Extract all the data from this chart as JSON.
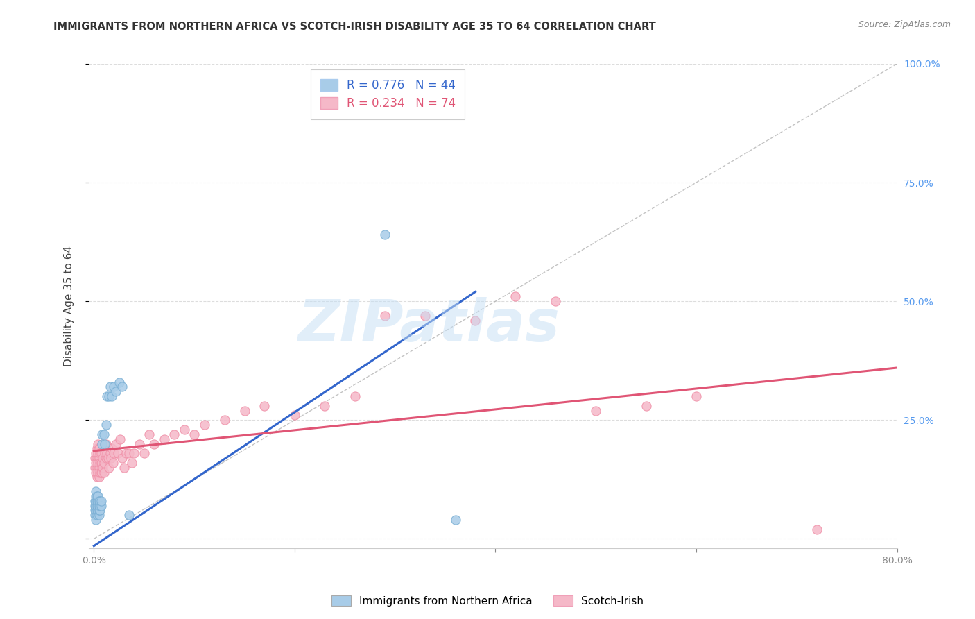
{
  "title": "IMMIGRANTS FROM NORTHERN AFRICA VS SCOTCH-IRISH DISABILITY AGE 35 TO 64 CORRELATION CHART",
  "source": "Source: ZipAtlas.com",
  "ylabel": "Disability Age 35 to 64",
  "xlim": [
    -0.005,
    0.8
  ],
  "ylim": [
    -0.02,
    1.0
  ],
  "xticks": [
    0.0,
    0.2,
    0.4,
    0.6,
    0.8
  ],
  "xticklabels": [
    "0.0%",
    "",
    "",
    "",
    "80.0%"
  ],
  "yticks": [
    0.0,
    0.25,
    0.5,
    0.75,
    1.0
  ],
  "right_yticklabels": [
    "",
    "25.0%",
    "50.0%",
    "75.0%",
    "100.0%"
  ],
  "blue_R": 0.776,
  "blue_N": 44,
  "pink_R": 0.234,
  "pink_N": 74,
  "blue_color": "#a8cce8",
  "pink_color": "#f5b8c8",
  "blue_edge_color": "#7aafd4",
  "pink_edge_color": "#f090a8",
  "blue_line_color": "#3366cc",
  "pink_line_color": "#e05575",
  "ref_line_color": "#aaaaaa",
  "blue_line_x0": 0.0,
  "blue_line_y0": -0.015,
  "blue_line_x1": 0.38,
  "blue_line_y1": 0.52,
  "pink_line_x0": 0.0,
  "pink_line_y0": 0.185,
  "pink_line_x1": 0.8,
  "pink_line_y1": 0.36,
  "ref_line_x0": 0.0,
  "ref_line_y0": 0.0,
  "ref_line_x1": 0.8,
  "ref_line_y1": 1.0,
  "blue_scatter_x": [
    0.001,
    0.001,
    0.001,
    0.001,
    0.002,
    0.002,
    0.002,
    0.002,
    0.002,
    0.002,
    0.003,
    0.003,
    0.003,
    0.003,
    0.003,
    0.004,
    0.004,
    0.004,
    0.004,
    0.005,
    0.005,
    0.005,
    0.005,
    0.006,
    0.006,
    0.006,
    0.007,
    0.007,
    0.008,
    0.008,
    0.01,
    0.011,
    0.012,
    0.013,
    0.015,
    0.016,
    0.018,
    0.02,
    0.022,
    0.025,
    0.028,
    0.035,
    0.29,
    0.36
  ],
  "blue_scatter_y": [
    0.05,
    0.06,
    0.07,
    0.08,
    0.04,
    0.06,
    0.07,
    0.08,
    0.09,
    0.1,
    0.05,
    0.06,
    0.07,
    0.08,
    0.09,
    0.06,
    0.07,
    0.08,
    0.09,
    0.05,
    0.06,
    0.07,
    0.08,
    0.06,
    0.07,
    0.08,
    0.07,
    0.08,
    0.2,
    0.22,
    0.22,
    0.2,
    0.24,
    0.3,
    0.3,
    0.32,
    0.3,
    0.32,
    0.31,
    0.33,
    0.32,
    0.05,
    0.64,
    0.04
  ],
  "pink_scatter_x": [
    0.001,
    0.001,
    0.002,
    0.002,
    0.002,
    0.003,
    0.003,
    0.003,
    0.003,
    0.004,
    0.004,
    0.004,
    0.004,
    0.005,
    0.005,
    0.005,
    0.005,
    0.006,
    0.006,
    0.006,
    0.007,
    0.007,
    0.007,
    0.008,
    0.008,
    0.008,
    0.009,
    0.009,
    0.01,
    0.01,
    0.011,
    0.012,
    0.012,
    0.013,
    0.014,
    0.015,
    0.016,
    0.017,
    0.018,
    0.019,
    0.02,
    0.022,
    0.024,
    0.026,
    0.028,
    0.03,
    0.032,
    0.035,
    0.038,
    0.04,
    0.045,
    0.05,
    0.055,
    0.06,
    0.07,
    0.08,
    0.09,
    0.1,
    0.11,
    0.13,
    0.15,
    0.17,
    0.2,
    0.23,
    0.26,
    0.29,
    0.33,
    0.38,
    0.42,
    0.46,
    0.5,
    0.55,
    0.6,
    0.72
  ],
  "pink_scatter_y": [
    0.15,
    0.17,
    0.14,
    0.16,
    0.18,
    0.13,
    0.15,
    0.17,
    0.19,
    0.14,
    0.16,
    0.18,
    0.2,
    0.13,
    0.15,
    0.17,
    0.19,
    0.14,
    0.16,
    0.18,
    0.14,
    0.16,
    0.18,
    0.14,
    0.16,
    0.2,
    0.15,
    0.17,
    0.14,
    0.16,
    0.18,
    0.17,
    0.2,
    0.18,
    0.17,
    0.15,
    0.18,
    0.17,
    0.19,
    0.16,
    0.18,
    0.2,
    0.18,
    0.21,
    0.17,
    0.15,
    0.18,
    0.18,
    0.16,
    0.18,
    0.2,
    0.18,
    0.22,
    0.2,
    0.21,
    0.22,
    0.23,
    0.22,
    0.24,
    0.25,
    0.27,
    0.28,
    0.26,
    0.28,
    0.3,
    0.47,
    0.47,
    0.46,
    0.51,
    0.5,
    0.27,
    0.28,
    0.3,
    0.02
  ],
  "watermark_text": "ZIPatlas",
  "background_color": "#ffffff",
  "grid_color": "#dddddd",
  "title_color": "#333333",
  "source_color": "#888888",
  "ylabel_color": "#444444",
  "tick_color": "#888888",
  "right_tick_color": "#5599ee"
}
